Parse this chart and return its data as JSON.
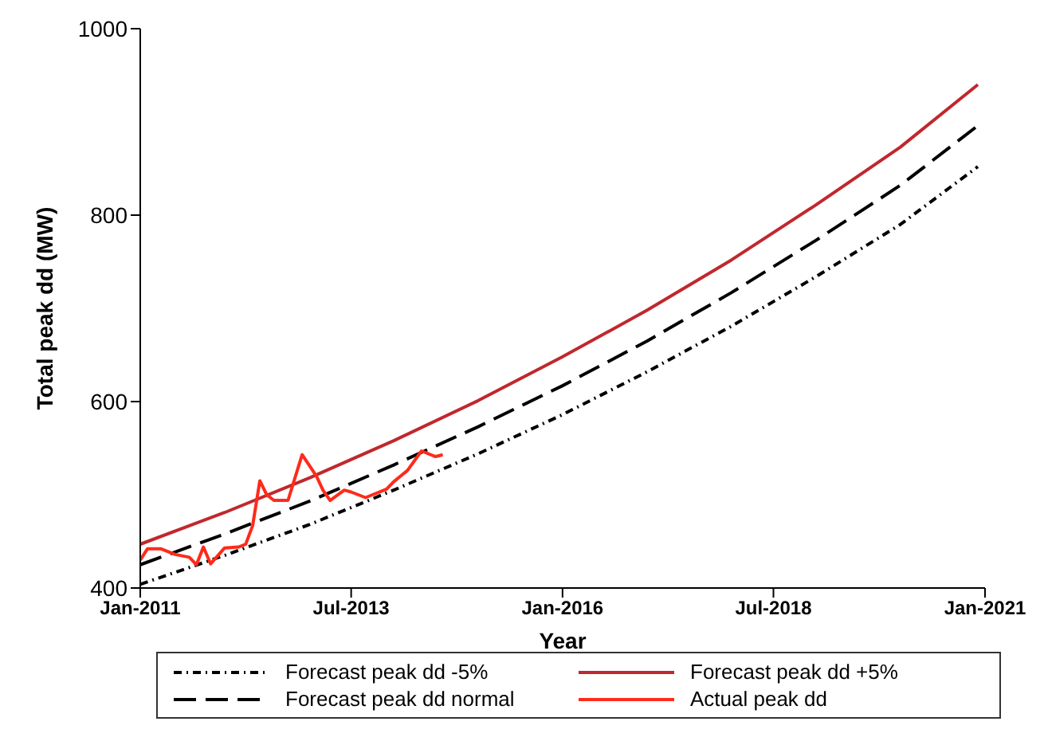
{
  "chart_data": {
    "type": "line",
    "xlabel": "Year",
    "ylabel": "Total peak dd (MW)",
    "xlim": [
      "2011-01",
      "2021-01"
    ],
    "ylim": [
      400,
      1000
    ],
    "xticks": [
      {
        "value": "2011-01",
        "label": "Jan-2011"
      },
      {
        "value": "2013-07",
        "label": "Jul-2013"
      },
      {
        "value": "2016-01",
        "label": "Jan-2016"
      },
      {
        "value": "2018-07",
        "label": "Jul-2018"
      },
      {
        "value": "2021-01",
        "label": "Jan-2021"
      }
    ],
    "yticks": [
      400,
      600,
      800,
      1000
    ],
    "legend": "bottom",
    "marker": "none",
    "series": [
      {
        "name": "Forecast peak dd -5%",
        "color": "#000000",
        "line_style": "dotted",
        "x": [
          "2011-01",
          "2012-01",
          "2013-01",
          "2014-01",
          "2015-01",
          "2016-01",
          "2017-01",
          "2018-01",
          "2019-01",
          "2020-01",
          "2020-12"
        ],
        "values": [
          404,
          435,
          468,
          505,
          544,
          586,
          632,
          681,
          734,
          790,
          852
        ]
      },
      {
        "name": "Forecast peak dd +5%",
        "color": "#c0282d",
        "line_style": "solid",
        "x": [
          "2011-01",
          "2012-01",
          "2013-01",
          "2014-01",
          "2015-01",
          "2016-01",
          "2017-01",
          "2018-01",
          "2019-01",
          "2020-01",
          "2020-12"
        ],
        "values": [
          447,
          481,
          518,
          558,
          601,
          648,
          698,
          752,
          811,
          873,
          940
        ]
      },
      {
        "name": "Forecast peak dd normal",
        "color": "#000000",
        "line_style": "dashed",
        "x": [
          "2011-01",
          "2012-01",
          "2013-01",
          "2014-01",
          "2015-01",
          "2016-01",
          "2017-01",
          "2018-01",
          "2019-01",
          "2020-01",
          "2020-12"
        ],
        "values": [
          425,
          458,
          493,
          532,
          573,
          617,
          665,
          717,
          773,
          832,
          896
        ]
      },
      {
        "name": "Actual peak dd",
        "color": "#ff2a1a",
        "line_style": "solid",
        "x": [
          "2011-01",
          "2011-02",
          "2011-04",
          "2011-06",
          "2011-08",
          "2011-09",
          "2011-10",
          "2011-11",
          "2012-01",
          "2012-03",
          "2012-04",
          "2012-05",
          "2012-06",
          "2012-07",
          "2012-08",
          "2012-10",
          "2012-12",
          "2013-02",
          "2013-03",
          "2013-04",
          "2013-06",
          "2013-07",
          "2013-09",
          "2013-10",
          "2013-12",
          "2014-01",
          "2014-03",
          "2014-05",
          "2014-07",
          "2014-08"
        ],
        "values": [
          430,
          442,
          442,
          436,
          433,
          425,
          444,
          426,
          443,
          444,
          447,
          467,
          515,
          500,
          494,
          494,
          543,
          520,
          505,
          494,
          505,
          503,
          497,
          500,
          506,
          514,
          526,
          547,
          541,
          543
        ]
      }
    ]
  }
}
